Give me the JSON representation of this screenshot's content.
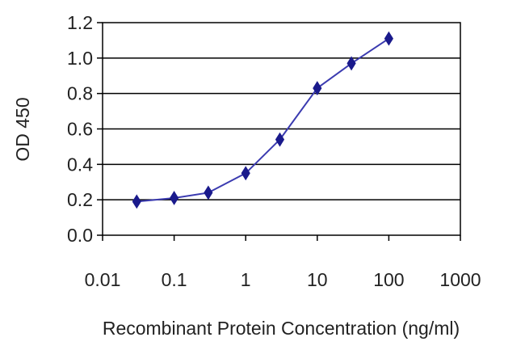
{
  "chart_data": {
    "type": "line",
    "title": "",
    "xlabel": "Recombinant Protein Concentration (ng/ml)",
    "ylabel": "OD 450",
    "x_scale": "log",
    "xlim": [
      0.01,
      1000
    ],
    "ylim": [
      0.0,
      1.2
    ],
    "x_ticks": [
      "0.01",
      "0.1",
      "1",
      "10",
      "100",
      "1000"
    ],
    "y_ticks": [
      "0.0",
      "0.2",
      "0.4",
      "0.6",
      "0.8",
      "1.0",
      "1.2"
    ],
    "grid": "horizontal",
    "series": [
      {
        "x": [
          0.03,
          0.1,
          0.3,
          1,
          3,
          10,
          30,
          100
        ],
        "y": [
          0.19,
          0.21,
          0.24,
          0.35,
          0.54,
          0.83,
          0.97,
          1.11
        ]
      }
    ],
    "colors": {
      "line": "#3b3bb0",
      "marker": "#1a1a8c",
      "frame": "#000000",
      "grid": "#000000"
    }
  }
}
